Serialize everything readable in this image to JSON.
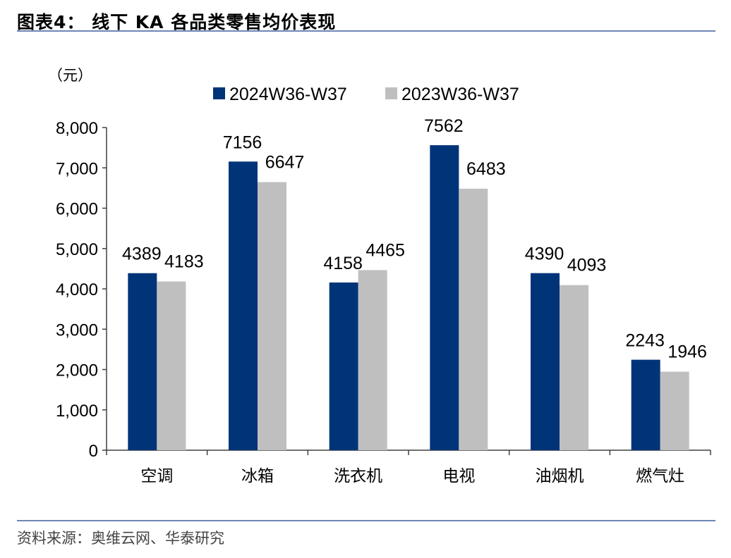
{
  "figure": {
    "title": "图表4：  线下 KA 各品类零售均价表现",
    "source": "资料来源：奥维云网、华泰研究"
  },
  "colors": {
    "series_2024": "#003478",
    "series_2023": "#bfbfbf",
    "rule": "#6d86b6",
    "axis": "#404040"
  },
  "chart_data": {
    "type": "bar",
    "title": "线下 KA 各品类零售均价表现",
    "unit": "（元）",
    "xlabel": "",
    "ylabel": "",
    "categories": [
      "空调",
      "冰箱",
      "洗衣机",
      "电视",
      "油烟机",
      "燃气灶"
    ],
    "series": [
      {
        "name": "2024W36-W37",
        "values": [
          4389,
          7156,
          4158,
          7562,
          4390,
          2243
        ]
      },
      {
        "name": "2023W36-W37",
        "values": [
          4183,
          6647,
          4465,
          6483,
          4093,
          1946
        ]
      }
    ],
    "ylim": [
      0,
      8000
    ],
    "yticks": [
      0,
      1000,
      2000,
      3000,
      4000,
      5000,
      6000,
      7000,
      8000
    ],
    "ytick_labels": [
      "0",
      "1,000",
      "2,000",
      "3,000",
      "4,000",
      "5,000",
      "6,000",
      "7,000",
      "8,000"
    ],
    "legend_position": "top-center",
    "grid": false
  }
}
